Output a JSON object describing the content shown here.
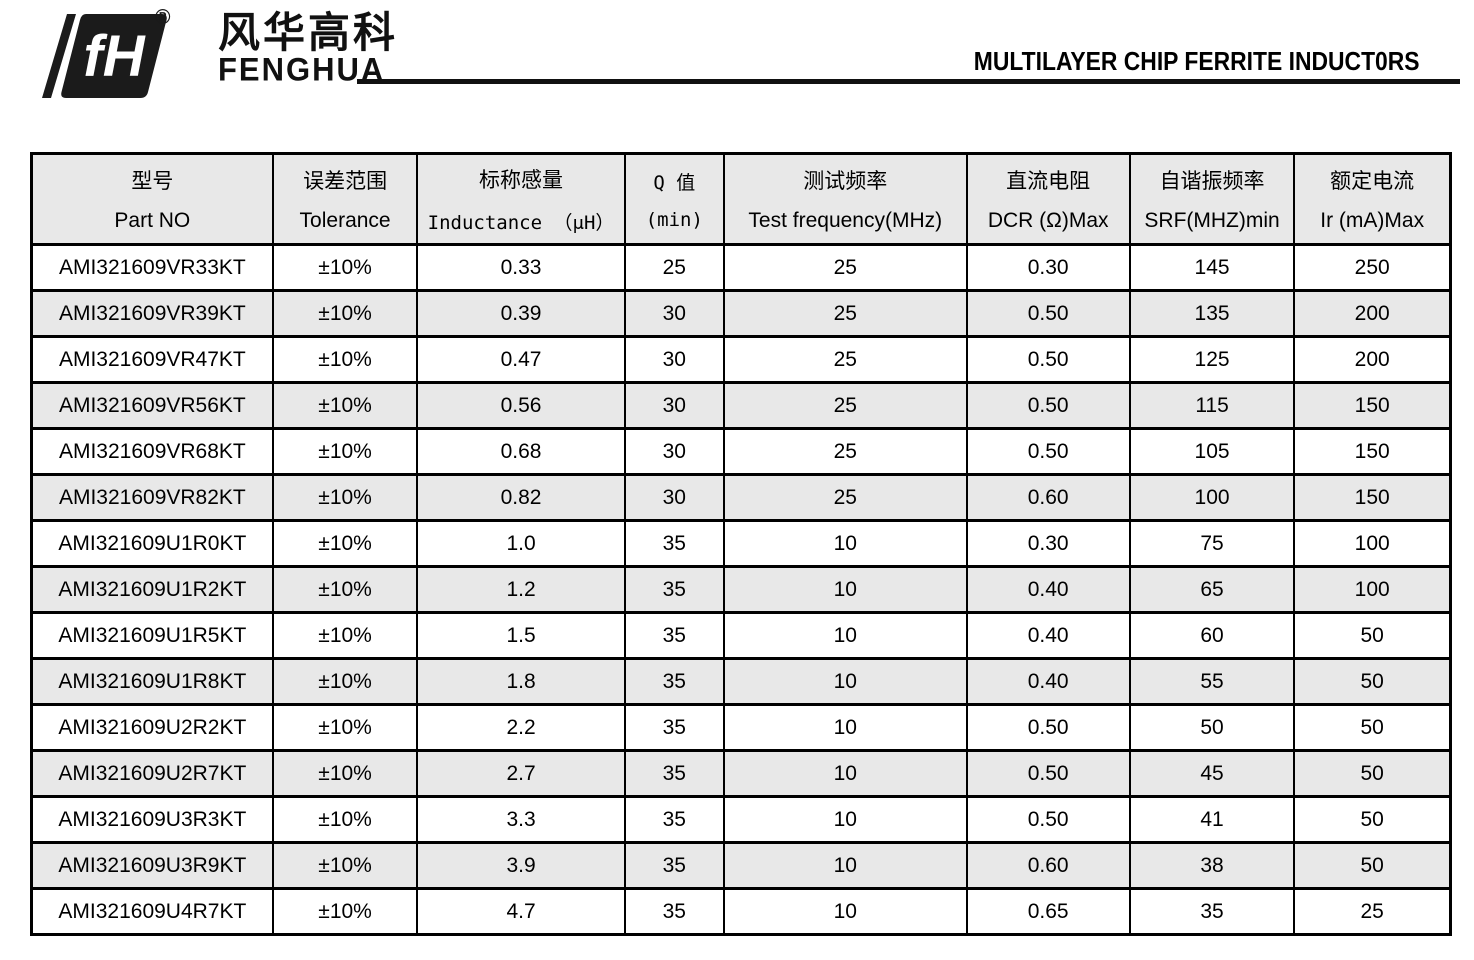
{
  "brand": {
    "logo_mark": "fH",
    "registered_symbol": "®",
    "name_cn": "风华高科",
    "name_en": "FENGHUA"
  },
  "header": {
    "title": "MULTILAYER CHIP FERRITE INDUCT0RS"
  },
  "colors": {
    "border": "#000000",
    "header_bg": "#e8e8e8",
    "row_alt_bg": "#e8e8e8",
    "text": "#000000",
    "rule": "#111111"
  },
  "table": {
    "columns": [
      {
        "key": "part-no",
        "cn": "型号",
        "en": "Part NO"
      },
      {
        "key": "tolerance",
        "cn": "误差范围",
        "en": "Tolerance"
      },
      {
        "key": "inductance",
        "cn": "标称感量",
        "en": "Inductance （μH）"
      },
      {
        "key": "q-min",
        "cn": "Q 值",
        "en": "(min)"
      },
      {
        "key": "test-frequency",
        "cn": "测试频率",
        "en": "Test frequency(MHz)"
      },
      {
        "key": "dcr",
        "cn": "直流电阻",
        "en": "DCR (Ω)Max"
      },
      {
        "key": "srf",
        "cn": "自谐振频率",
        "en": "SRF(MHZ)min"
      },
      {
        "key": "rated-current",
        "cn": "额定电流",
        "en": "Ir (mA)Max"
      }
    ],
    "rows": [
      [
        "AMI321609VR33KT",
        "±10%",
        "0.33",
        "25",
        "25",
        "0.30",
        "145",
        "250"
      ],
      [
        "AMI321609VR39KT",
        "±10%",
        "0.39",
        "30",
        "25",
        "0.50",
        "135",
        "200"
      ],
      [
        "AMI321609VR47KT",
        "±10%",
        "0.47",
        "30",
        "25",
        "0.50",
        "125",
        "200"
      ],
      [
        "AMI321609VR56KT",
        "±10%",
        "0.56",
        "30",
        "25",
        "0.50",
        "115",
        "150"
      ],
      [
        "AMI321609VR68KT",
        "±10%",
        "0.68",
        "30",
        "25",
        "0.50",
        "105",
        "150"
      ],
      [
        "AMI321609VR82KT",
        "±10%",
        "0.82",
        "30",
        "25",
        "0.60",
        "100",
        "150"
      ],
      [
        "AMI321609U1R0KT",
        "±10%",
        "1.0",
        "35",
        "10",
        "0.30",
        "75",
        "100"
      ],
      [
        "AMI321609U1R2KT",
        "±10%",
        "1.2",
        "35",
        "10",
        "0.40",
        "65",
        "100"
      ],
      [
        "AMI321609U1R5KT",
        "±10%",
        "1.5",
        "35",
        "10",
        "0.40",
        "60",
        "50"
      ],
      [
        "AMI321609U1R8KT",
        "±10%",
        "1.8",
        "35",
        "10",
        "0.40",
        "55",
        "50"
      ],
      [
        "AMI321609U2R2KT",
        "±10%",
        "2.2",
        "35",
        "10",
        "0.50",
        "50",
        "50"
      ],
      [
        "AMI321609U2R7KT",
        "±10%",
        "2.7",
        "35",
        "10",
        "0.50",
        "45",
        "50"
      ],
      [
        "AMI321609U3R3KT",
        "±10%",
        "3.3",
        "35",
        "10",
        "0.50",
        "41",
        "50"
      ],
      [
        "AMI321609U3R9KT",
        "±10%",
        "3.9",
        "35",
        "10",
        "0.60",
        "38",
        "50"
      ],
      [
        "AMI321609U4R7KT",
        "±10%",
        "4.7",
        "35",
        "10",
        "0.65",
        "35",
        "25"
      ]
    ]
  }
}
